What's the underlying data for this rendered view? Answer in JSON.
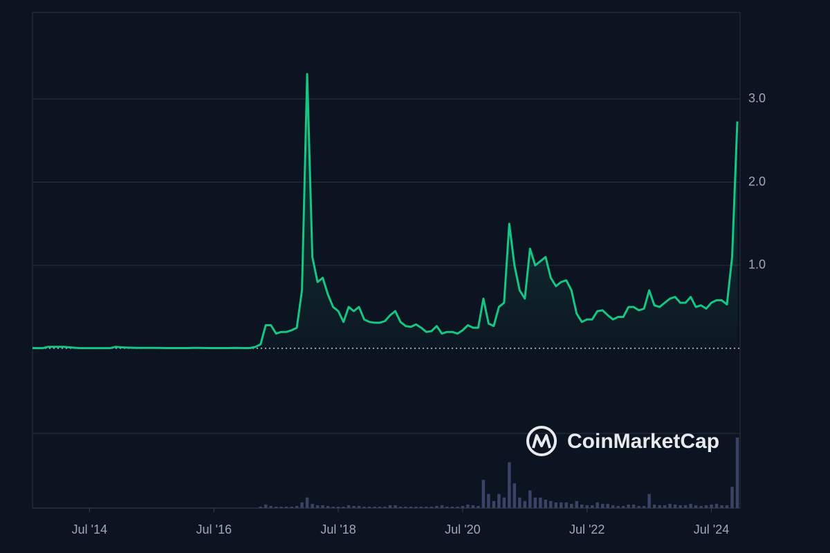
{
  "chart_data": {
    "type": "line",
    "x": [
      "2013-08",
      "2013-09",
      "2013-10",
      "2013-11",
      "2013-12",
      "2014-01",
      "2014-02",
      "2014-03",
      "2014-04",
      "2014-05",
      "2014-06",
      "2014-07",
      "2014-08",
      "2014-09",
      "2014-10",
      "2014-11",
      "2014-12",
      "2015-01",
      "2015-02",
      "2015-03",
      "2015-04",
      "2015-05",
      "2015-06",
      "2015-07",
      "2015-08",
      "2015-09",
      "2015-10",
      "2015-11",
      "2015-12",
      "2016-01",
      "2016-02",
      "2016-03",
      "2016-04",
      "2016-05",
      "2016-06",
      "2016-07",
      "2016-08",
      "2016-09",
      "2016-10",
      "2016-11",
      "2016-12",
      "2017-01",
      "2017-02",
      "2017-03",
      "2017-04",
      "2017-05",
      "2017-06",
      "2017-07",
      "2017-08",
      "2017-09",
      "2017-10",
      "2017-11",
      "2017-12",
      "2018-01",
      "2018-02",
      "2018-03",
      "2018-04",
      "2018-05",
      "2018-06",
      "2018-07",
      "2018-08",
      "2018-09",
      "2018-10",
      "2018-11",
      "2018-12",
      "2019-01",
      "2019-02",
      "2019-03",
      "2019-04",
      "2019-05",
      "2019-06",
      "2019-07",
      "2019-08",
      "2019-09",
      "2019-10",
      "2019-11",
      "2019-12",
      "2020-01",
      "2020-02",
      "2020-03",
      "2020-04",
      "2020-05",
      "2020-06",
      "2020-07",
      "2020-08",
      "2020-09",
      "2020-10",
      "2020-11",
      "2020-12",
      "2021-01",
      "2021-02",
      "2021-03",
      "2021-04",
      "2021-05",
      "2021-06",
      "2021-07",
      "2021-08",
      "2021-09",
      "2021-10",
      "2021-11",
      "2021-12",
      "2022-01",
      "2022-02",
      "2022-03",
      "2022-04",
      "2022-05",
      "2022-06",
      "2022-07",
      "2022-08",
      "2022-09",
      "2022-10",
      "2022-11",
      "2022-12",
      "2023-01",
      "2023-02",
      "2023-03",
      "2023-04",
      "2023-05",
      "2023-06",
      "2023-07",
      "2023-08",
      "2023-09",
      "2023-10",
      "2023-11",
      "2023-12",
      "2024-01",
      "2024-02",
      "2024-03",
      "2024-04",
      "2024-05",
      "2024-06",
      "2024-07",
      "2024-08",
      "2024-09",
      "2024-10",
      "2024-11",
      "2024-12"
    ],
    "values": [
      0.006,
      0.005,
      0.005,
      0.02,
      0.02,
      0.02,
      0.02,
      0.015,
      0.01,
      0.006,
      0.005,
      0.005,
      0.005,
      0.005,
      0.005,
      0.005,
      0.02,
      0.015,
      0.012,
      0.01,
      0.008,
      0.008,
      0.008,
      0.008,
      0.008,
      0.007,
      0.006,
      0.006,
      0.006,
      0.006,
      0.006,
      0.008,
      0.008,
      0.007,
      0.006,
      0.006,
      0.006,
      0.006,
      0.006,
      0.008,
      0.007,
      0.006,
      0.006,
      0.02,
      0.05,
      0.28,
      0.28,
      0.18,
      0.2,
      0.2,
      0.22,
      0.25,
      0.7,
      3.3,
      1.1,
      0.8,
      0.85,
      0.65,
      0.5,
      0.45,
      0.32,
      0.5,
      0.45,
      0.5,
      0.35,
      0.32,
      0.31,
      0.31,
      0.33,
      0.4,
      0.45,
      0.32,
      0.27,
      0.26,
      0.29,
      0.25,
      0.2,
      0.21,
      0.27,
      0.18,
      0.2,
      0.2,
      0.18,
      0.22,
      0.28,
      0.25,
      0.25,
      0.6,
      0.3,
      0.27,
      0.5,
      0.55,
      1.5,
      1.0,
      0.7,
      0.6,
      1.2,
      1.0,
      1.05,
      1.1,
      0.85,
      0.75,
      0.8,
      0.82,
      0.7,
      0.42,
      0.32,
      0.35,
      0.35,
      0.45,
      0.46,
      0.4,
      0.35,
      0.38,
      0.38,
      0.5,
      0.5,
      0.46,
      0.48,
      0.7,
      0.52,
      0.5,
      0.55,
      0.6,
      0.62,
      0.55,
      0.55,
      0.62,
      0.5,
      0.52,
      0.48,
      0.55,
      0.58,
      0.58,
      0.53,
      1.1,
      2.73
    ],
    "volume": [
      0,
      0,
      0,
      0,
      0,
      0,
      0,
      0,
      0,
      0,
      0,
      0,
      0,
      0,
      0,
      0,
      0,
      0,
      0,
      0,
      0,
      0,
      0,
      0,
      0,
      0,
      0,
      0,
      0,
      0,
      0,
      0,
      0,
      0,
      0,
      0,
      0,
      0,
      0,
      0,
      0,
      0,
      0,
      0.5,
      2,
      5,
      3,
      2,
      2,
      2,
      2,
      3,
      8,
      15,
      6,
      4,
      4,
      3,
      2,
      2,
      2,
      4,
      3,
      3,
      2,
      2,
      2,
      2,
      2,
      4,
      4,
      2,
      2,
      2,
      2,
      2,
      2,
      2,
      3,
      4,
      2,
      2,
      2,
      3,
      5,
      4,
      3,
      40,
      20,
      10,
      20,
      15,
      65,
      35,
      15,
      10,
      25,
      15,
      15,
      12,
      10,
      8,
      8,
      8,
      6,
      10,
      5,
      4,
      4,
      8,
      6,
      6,
      4,
      3,
      3,
      5,
      5,
      3,
      3,
      20,
      5,
      4,
      4,
      6,
      5,
      4,
      4,
      6,
      4,
      3,
      4,
      5,
      6,
      4,
      4,
      30,
      100
    ],
    "color": "#16c784",
    "volume_color": "#3a4266",
    "xlim": [
      "2013-08",
      "2024-12"
    ],
    "ylim": [
      -1.02,
      4.04
    ],
    "yticks": [
      {
        "value": 1,
        "label": "1.0"
      },
      {
        "value": 2,
        "label": "2.0"
      },
      {
        "value": 3,
        "label": "3.0"
      }
    ],
    "xticks": [
      {
        "value": "2014-07",
        "label": "Jul '14"
      },
      {
        "value": "2016-07",
        "label": "Jul '16"
      },
      {
        "value": "2018-07",
        "label": "Jul '18"
      },
      {
        "value": "2020-07",
        "label": "Jul '20"
      },
      {
        "value": "2022-07",
        "label": "Jul '22"
      },
      {
        "value": "2024-07",
        "label": "Jul '24"
      }
    ],
    "baseline": 0.003,
    "grid": true,
    "watermark": "CoinMarketCap"
  }
}
